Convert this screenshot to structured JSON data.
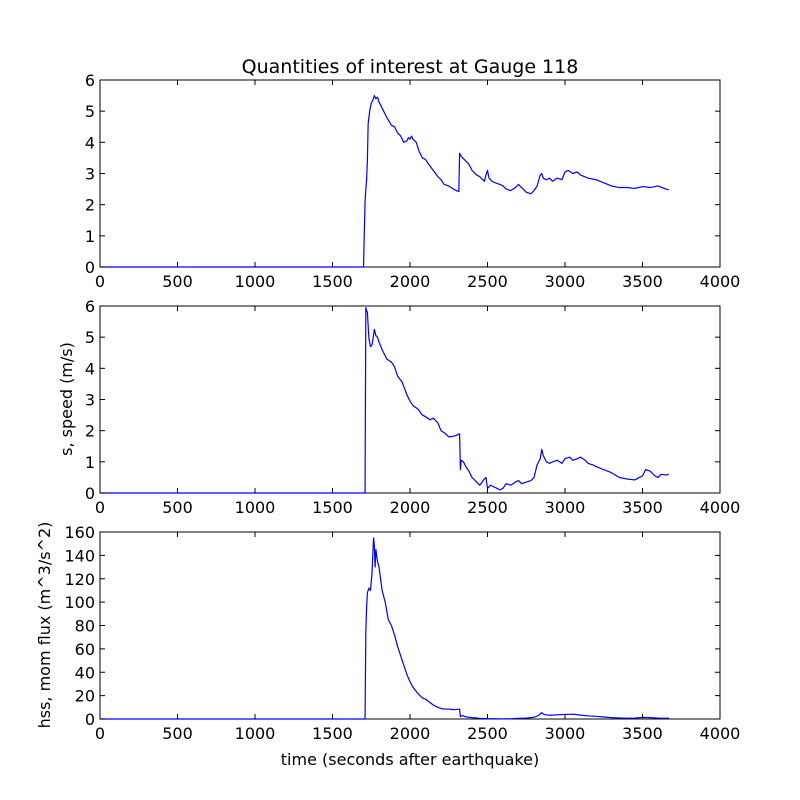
{
  "chart_data": [
    {
      "type": "line",
      "title": "Quantities of interest at Gauge 118",
      "xlabel": "",
      "ylabel": "",
      "xlim": [
        0,
        4000
      ],
      "ylim": [
        0,
        6
      ],
      "xticks": [
        "0",
        "500",
        "1000",
        "1500",
        "2000",
        "2500",
        "3000",
        "3500",
        "4000"
      ],
      "yticks": [
        "0",
        "1",
        "2",
        "3",
        "4",
        "5",
        "6"
      ],
      "grid": false,
      "series": [
        {
          "color": "#0000ff",
          "x": [
            0,
            1700,
            1710,
            1715,
            1720,
            1725,
            1730,
            1740,
            1750,
            1760,
            1770,
            1780,
            1790,
            1800,
            1820,
            1850,
            1880,
            1900,
            1920,
            1940,
            1960,
            1980,
            1990,
            2000,
            2010,
            2020,
            2040,
            2060,
            2080,
            2100,
            2120,
            2150,
            2180,
            2200,
            2220,
            2250,
            2280,
            2300,
            2315,
            2320,
            2330,
            2350,
            2380,
            2400,
            2430,
            2450,
            2480,
            2490,
            2500,
            2510,
            2530,
            2550,
            2580,
            2600,
            2620,
            2650,
            2680,
            2700,
            2720,
            2750,
            2780,
            2800,
            2820,
            2840,
            2850,
            2860,
            2880,
            2900,
            2920,
            2950,
            2980,
            3000,
            3020,
            3050,
            3080,
            3100,
            3150,
            3200,
            3250,
            3300,
            3350,
            3400,
            3450,
            3500,
            3550,
            3600,
            3650,
            3670
          ],
          "values": [
            0,
            0,
            2.1,
            2.5,
            2.8,
            3.4,
            4.6,
            5.0,
            5.25,
            5.35,
            5.5,
            5.4,
            5.45,
            5.3,
            5.1,
            4.8,
            4.55,
            4.5,
            4.3,
            4.2,
            4.0,
            4.05,
            4.15,
            4.1,
            4.2,
            4.1,
            4.0,
            3.7,
            3.5,
            3.45,
            3.3,
            3.1,
            2.9,
            2.8,
            2.65,
            2.6,
            2.5,
            2.45,
            2.42,
            3.65,
            3.55,
            3.45,
            3.3,
            3.1,
            2.95,
            2.9,
            2.75,
            2.95,
            3.1,
            2.85,
            2.75,
            2.7,
            2.65,
            2.6,
            2.5,
            2.45,
            2.55,
            2.65,
            2.55,
            2.4,
            2.35,
            2.45,
            2.6,
            2.95,
            3.0,
            2.85,
            2.8,
            2.85,
            2.75,
            2.85,
            2.8,
            3.05,
            3.1,
            3.0,
            3.05,
            2.95,
            2.85,
            2.8,
            2.7,
            2.6,
            2.55,
            2.55,
            2.52,
            2.58,
            2.55,
            2.6,
            2.5,
            2.48
          ]
        }
      ]
    },
    {
      "type": "line",
      "title": "",
      "xlabel": "",
      "ylabel": "s, speed (m/s)",
      "xlim": [
        0,
        4000
      ],
      "ylim": [
        0,
        6
      ],
      "xticks": [
        "0",
        "500",
        "1000",
        "1500",
        "2000",
        "2500",
        "3000",
        "3500",
        "4000"
      ],
      "yticks": [
        "0",
        "1",
        "2",
        "3",
        "4",
        "5",
        "6"
      ],
      "grid": false,
      "series": [
        {
          "color": "#0000ff",
          "x": [
            0,
            1700,
            1710,
            1715,
            1720,
            1725,
            1735,
            1745,
            1755,
            1760,
            1770,
            1780,
            1790,
            1800,
            1820,
            1850,
            1880,
            1900,
            1920,
            1950,
            1980,
            2000,
            2020,
            2050,
            2080,
            2100,
            2130,
            2150,
            2180,
            2200,
            2230,
            2250,
            2280,
            2300,
            2320,
            2325,
            2330,
            2345,
            2360,
            2380,
            2400,
            2420,
            2450,
            2480,
            2490,
            2500,
            2510,
            2520,
            2540,
            2560,
            2580,
            2600,
            2620,
            2650,
            2680,
            2700,
            2720,
            2750,
            2780,
            2800,
            2820,
            2840,
            2850,
            2860,
            2880,
            2900,
            2920,
            2950,
            2980,
            3000,
            3030,
            3050,
            3080,
            3100,
            3130,
            3150,
            3180,
            3200,
            3250,
            3300,
            3350,
            3400,
            3450,
            3480,
            3500,
            3520,
            3550,
            3580,
            3600,
            3620,
            3650,
            3670
          ],
          "values": [
            0,
            0,
            0,
            5.95,
            5.85,
            5.8,
            4.95,
            4.7,
            4.75,
            4.9,
            5.25,
            5.05,
            5.0,
            4.85,
            4.6,
            4.3,
            4.2,
            4.05,
            3.75,
            3.55,
            3.15,
            2.95,
            2.8,
            2.7,
            2.5,
            2.45,
            2.35,
            2.4,
            2.25,
            2.0,
            1.9,
            1.8,
            1.82,
            1.85,
            1.9,
            0.75,
            1.05,
            1.0,
            0.85,
            0.7,
            0.5,
            0.4,
            0.25,
            0.45,
            0.5,
            0.15,
            0.2,
            0.25,
            0.2,
            0.15,
            0.1,
            0.15,
            0.3,
            0.25,
            0.35,
            0.4,
            0.3,
            0.35,
            0.4,
            0.5,
            0.9,
            1.1,
            1.4,
            1.2,
            1.0,
            0.95,
            1.0,
            1.05,
            0.95,
            1.1,
            1.15,
            1.05,
            1.1,
            1.15,
            1.05,
            0.95,
            0.9,
            0.85,
            0.75,
            0.65,
            0.5,
            0.45,
            0.42,
            0.5,
            0.55,
            0.75,
            0.7,
            0.55,
            0.5,
            0.6,
            0.58,
            0.6
          ]
        }
      ]
    },
    {
      "type": "line",
      "title": "",
      "xlabel": "time (seconds after earthquake)",
      "ylabel": "hss, mom flux (m^3/s^2)",
      "xlim": [
        0,
        4000
      ],
      "ylim": [
        0,
        160
      ],
      "xticks": [
        "0",
        "500",
        "1000",
        "1500",
        "2000",
        "2500",
        "3000",
        "3500",
        "4000"
      ],
      "yticks": [
        "0",
        "20",
        "40",
        "60",
        "80",
        "100",
        "120",
        "140",
        "160"
      ],
      "grid": false,
      "series": [
        {
          "color": "#0000ff",
          "x": [
            0,
            1700,
            1710,
            1715,
            1720,
            1725,
            1735,
            1745,
            1755,
            1760,
            1765,
            1770,
            1775,
            1780,
            1790,
            1800,
            1810,
            1820,
            1840,
            1860,
            1880,
            1900,
            1920,
            1950,
            1980,
            2000,
            2020,
            2050,
            2080,
            2100,
            2130,
            2150,
            2180,
            2200,
            2220,
            2250,
            2280,
            2300,
            2320,
            2325,
            2340,
            2360,
            2400,
            2450,
            2500,
            2550,
            2600,
            2650,
            2700,
            2750,
            2800,
            2830,
            2850,
            2860,
            2880,
            2900,
            2950,
            3000,
            3050,
            3100,
            3150,
            3200,
            3250,
            3300,
            3350,
            3400,
            3450,
            3500,
            3550,
            3600,
            3650,
            3670
          ],
          "values": [
            0,
            0,
            0,
            75,
            95,
            108,
            112,
            110,
            125,
            140,
            155,
            148,
            130,
            145,
            135,
            130,
            120,
            110,
            100,
            85,
            80,
            72,
            62,
            50,
            38,
            32,
            27,
            22,
            18,
            17,
            14,
            12,
            10,
            9,
            8.5,
            8.5,
            8.0,
            8.2,
            8.5,
            2.0,
            3.0,
            1.8,
            1.2,
            0.6,
            0.3,
            0.2,
            0.15,
            0.2,
            0.6,
            0.8,
            1.5,
            3.0,
            5.5,
            4.2,
            3.5,
            3.2,
            3.6,
            3.9,
            4.1,
            3.3,
            2.6,
            2.3,
            1.7,
            1.2,
            0.9,
            0.7,
            0.8,
            1.4,
            1.2,
            0.8,
            0.7,
            0.8
          ]
        }
      ]
    }
  ]
}
